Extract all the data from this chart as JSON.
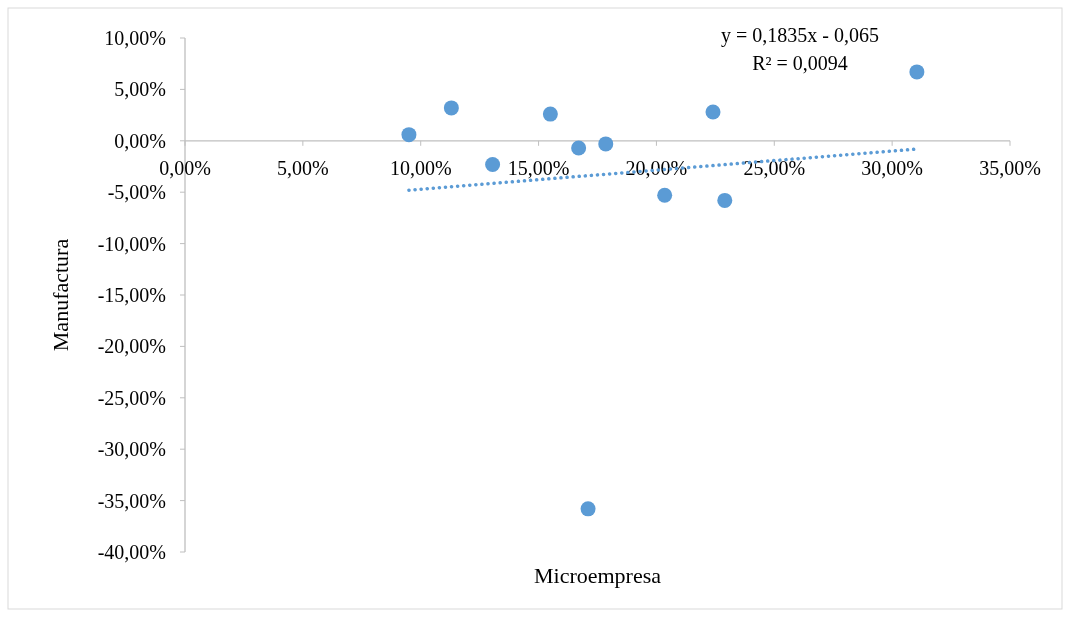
{
  "chart_data": {
    "type": "scatter",
    "xlabel": "Microempresa",
    "ylabel": "Manufactura",
    "annotations": [
      "y = 0,1835x - 0,065",
      "R² = 0,0094"
    ],
    "xlim": [
      0,
      35
    ],
    "ylim": [
      -40,
      10
    ],
    "xticks": [
      {
        "value": 0,
        "label": "0,00%"
      },
      {
        "value": 5,
        "label": "5,00%"
      },
      {
        "value": 10,
        "label": "10,00%"
      },
      {
        "value": 15,
        "label": "15,00%"
      },
      {
        "value": 20,
        "label": "20,00%"
      },
      {
        "value": 25,
        "label": "25,00%"
      },
      {
        "value": 30,
        "label": "30,00%"
      },
      {
        "value": 35,
        "label": "35,00%"
      }
    ],
    "yticks": [
      {
        "value": 10,
        "label": "10,00%"
      },
      {
        "value": 5,
        "label": "5,00%"
      },
      {
        "value": 0,
        "label": "0,00%"
      },
      {
        "value": -5,
        "label": "-5,00%"
      },
      {
        "value": -10,
        "label": "-10,00%"
      },
      {
        "value": -15,
        "label": "-15,00%"
      },
      {
        "value": -20,
        "label": "-20,00%"
      },
      {
        "value": -25,
        "label": "-25,00%"
      },
      {
        "value": -30,
        "label": "-30,00%"
      },
      {
        "value": -35,
        "label": "-35,00%"
      },
      {
        "value": -40,
        "label": "-40,00%"
      }
    ],
    "series": [
      {
        "marker": "circle",
        "color": "#5b9bd5",
        "x": [
          9.5,
          11.3,
          13.05,
          15.5,
          16.7,
          17.85,
          20.35,
          22.4,
          22.9,
          31.05,
          17.1
        ],
        "values": [
          0.6,
          3.2,
          -2.3,
          2.6,
          -0.7,
          -0.3,
          -5.3,
          2.8,
          -5.8,
          6.7,
          -35.8
        ]
      },
      {
        "type": "line",
        "color": "#5b9bd5",
        "line_style": "dotted",
        "x": [
          9.5,
          31.05
        ],
        "values": [
          -4.8,
          -0.8
        ]
      }
    ]
  }
}
